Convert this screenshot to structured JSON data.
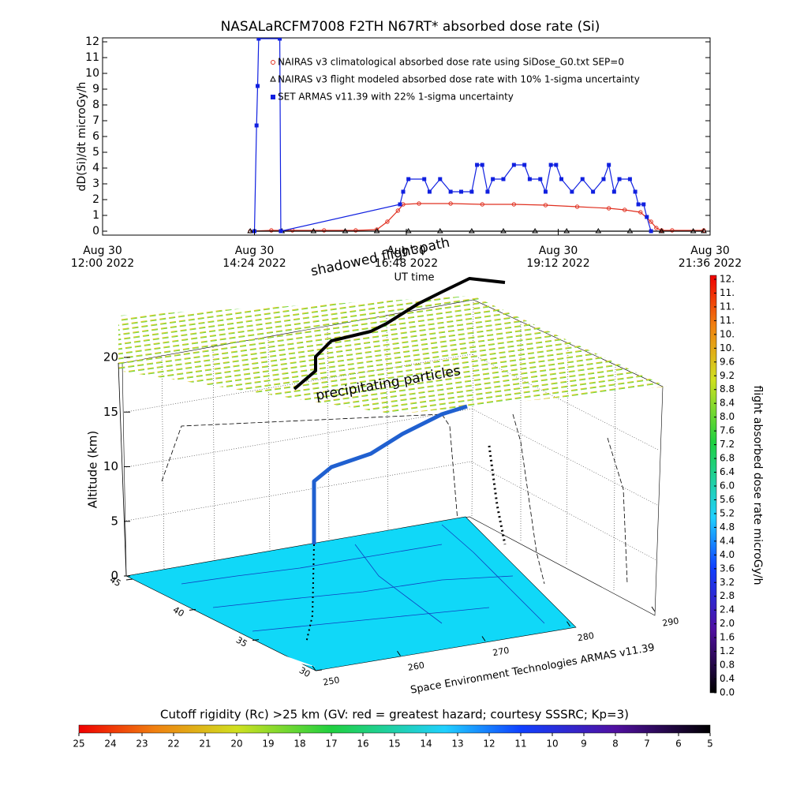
{
  "chart_data": [
    {
      "type": "line",
      "title": "NASALaRCFM7008  F2TH N67RT* absorbed dose rate (Si)",
      "y_label": "dD(Si)/dt microGy/h",
      "x_label": "UT time",
      "xlim": [
        "12:00",
        "21:36"
      ],
      "xticks": [
        {
          "value": "12:00",
          "label": [
            "Aug 30",
            "12:00 2022"
          ]
        },
        {
          "value": "14:24",
          "label": [
            "Aug 30",
            "14:24 2022"
          ]
        },
        {
          "value": "16:48",
          "label": [
            "Aug 30",
            "16:48 2022"
          ]
        },
        {
          "value": "19:12",
          "label": [
            "Aug 30",
            "19:12 2022"
          ]
        },
        {
          "value": "21:36",
          "label": [
            "Aug 30",
            "21:36 2022"
          ]
        }
      ],
      "ylim": [
        -0.25,
        12.25
      ],
      "yticks": [
        0,
        1,
        2,
        3,
        4,
        5,
        6,
        7,
        8,
        9,
        10,
        11,
        12
      ],
      "series": [
        {
          "name": "NAIRAS v3 climatological absorbed dose rate using SiDose_G0.txt SEP=0",
          "color": "#e03020",
          "marker": "circle",
          "x": [
            "14:20",
            "14:40",
            "15:00",
            "15:30",
            "16:00",
            "16:20",
            "16:30",
            "16:40",
            "16:45",
            "17:00",
            "17:30",
            "18:00",
            "18:30",
            "19:00",
            "19:30",
            "20:00",
            "20:15",
            "20:30",
            "20:40",
            "20:45",
            "20:50",
            "21:00",
            "21:30"
          ],
          "values": [
            0,
            0.05,
            0.05,
            0.05,
            0.05,
            0.1,
            0.6,
            1.3,
            1.7,
            1.75,
            1.75,
            1.7,
            1.7,
            1.65,
            1.55,
            1.45,
            1.35,
            1.2,
            0.6,
            0.2,
            0.05,
            0.05,
            0.05
          ]
        },
        {
          "name": "NAIRAS v3 flight modeled absorbed dose rate with 10% 1-sigma uncertainty",
          "color": "#000000",
          "marker": "triangle",
          "x": [
            "14:20",
            "14:50",
            "15:20",
            "15:50",
            "16:20",
            "16:50",
            "17:20",
            "17:50",
            "18:20",
            "18:50",
            "19:20",
            "19:50",
            "20:20",
            "20:50",
            "21:20",
            "21:30"
          ],
          "values": [
            0,
            0,
            0,
            0,
            0,
            0,
            0,
            0,
            0,
            0,
            0,
            0,
            0,
            0,
            0,
            0
          ]
        },
        {
          "name": "SET ARMAS v11.39 with 22% 1-sigma uncertainty",
          "color": "#1020e0",
          "marker": "square",
          "x": [
            "14:24",
            "14:26",
            "14:27",
            "14:28",
            "14:48",
            "14:49",
            "16:42",
            "16:45",
            "16:50",
            "17:05",
            "17:10",
            "17:20",
            "17:30",
            "17:40",
            "17:50",
            "17:55",
            "18:00",
            "18:05",
            "18:10",
            "18:20",
            "18:30",
            "18:40",
            "18:45",
            "18:55",
            "19:00",
            "19:05",
            "19:10",
            "19:15",
            "19:25",
            "19:35",
            "19:45",
            "19:55",
            "20:00",
            "20:05",
            "20:10",
            "20:20",
            "20:25",
            "20:28",
            "20:33",
            "20:36",
            "20:40"
          ],
          "values": [
            0,
            6.7,
            9.2,
            12.2,
            12.2,
            0,
            1.7,
            2.5,
            3.3,
            3.3,
            2.5,
            3.3,
            2.5,
            2.5,
            2.5,
            4.2,
            4.2,
            2.5,
            3.3,
            3.3,
            4.2,
            4.2,
            3.3,
            3.3,
            2.5,
            4.2,
            4.2,
            3.3,
            2.5,
            3.3,
            2.5,
            3.3,
            4.2,
            2.5,
            3.3,
            3.3,
            2.5,
            1.7,
            1.7,
            0.9,
            0
          ]
        }
      ]
    },
    {
      "type": "surface3d",
      "z_label": "Altitude (km)",
      "zlim": [
        0,
        20
      ],
      "zticks": [
        0,
        5,
        10,
        15,
        20
      ],
      "lat_ticks": [
        45,
        40,
        35,
        30
      ],
      "lon_ticks": [
        250,
        260,
        270,
        280,
        290
      ],
      "annotations": [
        "shadowed flight path",
        "precipitating particles",
        "Space Environment Technologies ARMAS v11.39"
      ],
      "dose_colorbar": {
        "label": "flight absorbed dose rate microGy/h",
        "lim": [
          0,
          12
        ],
        "ticks": [
          {
            "value": 0,
            "label": "0.0"
          },
          {
            "value": 0.4,
            "label": "0.4"
          },
          {
            "value": 0.8,
            "label": "0.8"
          },
          {
            "value": 1.2,
            "label": "1.2"
          },
          {
            "value": 1.6,
            "label": "1.6"
          },
          {
            "value": 2,
            "label": "2.0"
          },
          {
            "value": 2.4,
            "label": "2.4"
          },
          {
            "value": 2.8,
            "label": "2.8"
          },
          {
            "value": 3.2,
            "label": "3.2"
          },
          {
            "value": 3.6,
            "label": "3.6"
          },
          {
            "value": 4,
            "label": "4.0"
          },
          {
            "value": 4.4,
            "label": "4.4"
          },
          {
            "value": 4.8,
            "label": "4.8"
          },
          {
            "value": 5.2,
            "label": "5.2"
          },
          {
            "value": 5.6,
            "label": "5.6"
          },
          {
            "value": 6,
            "label": "6.0"
          },
          {
            "value": 6.4,
            "label": "6.4"
          },
          {
            "value": 6.8,
            "label": "6.8"
          },
          {
            "value": 7.2,
            "label": "7.2"
          },
          {
            "value": 7.6,
            "label": "7.6"
          },
          {
            "value": 8,
            "label": "8.0"
          },
          {
            "value": 8.4,
            "label": "8.4"
          },
          {
            "value": 8.8,
            "label": "8.8"
          },
          {
            "value": 9.2,
            "label": "9.2"
          },
          {
            "value": 9.6,
            "label": "9.6"
          },
          {
            "value": 10,
            "label": "10."
          },
          {
            "value": 10.4,
            "label": "10."
          },
          {
            "value": 10.8,
            "label": "11."
          },
          {
            "value": 11.2,
            "label": "11."
          },
          {
            "value": 11.6,
            "label": "11."
          },
          {
            "value": 12,
            "label": "12."
          }
        ]
      },
      "rigidity_colorbar": {
        "title": "Cutoff rigidity (Rc) >25 km (GV: red = greatest hazard; courtesy SSSRC; Kp=3)",
        "lim": [
          25,
          5
        ],
        "ticks": [
          25,
          24,
          23,
          22,
          21,
          20,
          19,
          18,
          17,
          16,
          15,
          14,
          13,
          12,
          11,
          10,
          9,
          8,
          7,
          6,
          5
        ]
      }
    }
  ]
}
